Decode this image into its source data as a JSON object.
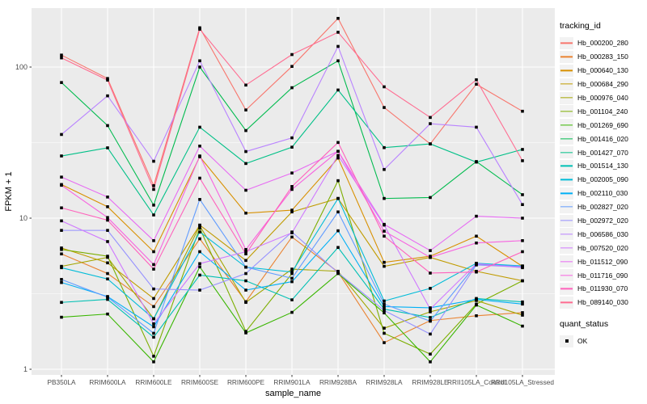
{
  "chart_data": {
    "type": "line",
    "title": "",
    "xlabel": "sample_name",
    "ylabel": "FPKM + 1",
    "yscale": "log10",
    "ylim": [
      1,
      250
    ],
    "yticks": [
      1,
      10,
      100
    ],
    "ytick_labels": [
      "1",
      "10",
      "100"
    ],
    "yminor_breaks": [
      3.162,
      31.62
    ],
    "grid": "on",
    "legend_position": "right",
    "legend_title": "tracking_id",
    "panel_bg": "#EBEBEB",
    "grid_color": "#FFFFFF",
    "axis_text_color": "#4D4D4D",
    "axis_title_color": "#000000",
    "marker": {
      "shape": "square",
      "color": "#000000"
    },
    "quant_legend": {
      "title": "quant_status",
      "items": [
        {
          "label": "OK",
          "marker": "black-square"
        }
      ]
    },
    "categories": [
      "PB350LA",
      "RRIM600LA",
      "RRIM600LE",
      "RRIM600SE",
      "RRIM600PE",
      "RRIM901LA",
      "RRIM928BA",
      "RRIM928LA",
      "RRIM928LE",
      "RRII105LA_Control",
      "RRII105LA_Stressed"
    ],
    "series": [
      {
        "name": "Hb_000200_280",
        "color": "#F8766D",
        "values": [
          120,
          84,
          16.4,
          182,
          52,
          101,
          210,
          54,
          31,
          77,
          51
        ]
      },
      {
        "name": "Hb_000283_150",
        "color": "#EA8331",
        "values": [
          5.8,
          4.3,
          2.6,
          7.3,
          2.8,
          7.5,
          4.4,
          1.5,
          2.1,
          2.26,
          2.37
        ]
      },
      {
        "name": "Hb_000640_130",
        "color": "#D89000",
        "values": [
          16.7,
          11.9,
          6.0,
          25.5,
          10.8,
          11.3,
          25,
          5.1,
          5.6,
          7.6,
          4.8
        ]
      },
      {
        "name": "Hb_000684_290",
        "color": "#C09B00",
        "values": [
          6.35,
          5.06,
          2.94,
          9.0,
          5.25,
          11.0,
          13.5,
          4.8,
          5.5,
          4.45,
          3.85
        ]
      },
      {
        "name": "Hb_000976_040",
        "color": "#A3A500",
        "values": [
          4.8,
          5.5,
          2.16,
          8.9,
          2.77,
          4.6,
          4.45,
          1.87,
          2.4,
          2.85,
          2.28
        ]
      },
      {
        "name": "Hb_001104_240",
        "color": "#7CAE00",
        "values": [
          6.2,
          5.6,
          1.22,
          8.6,
          1.78,
          4.3,
          17.7,
          1.73,
          1.26,
          2.7,
          3.85
        ]
      },
      {
        "name": "Hb_001269_690",
        "color": "#39B600",
        "values": [
          2.21,
          2.32,
          1.12,
          4.76,
          1.74,
          2.38,
          4.3,
          2.36,
          1.12,
          2.66,
          1.93
        ]
      },
      {
        "name": "Hb_001416_020",
        "color": "#00BB4E",
        "values": [
          79,
          41,
          12.2,
          100,
          38,
          73,
          110,
          13.5,
          13.7,
          23.7,
          14.3
        ]
      },
      {
        "name": "Hb_001427_070",
        "color": "#00C087",
        "values": [
          25.8,
          29.2,
          10.5,
          40,
          23,
          29.5,
          70.5,
          29.3,
          31,
          23.5,
          28.5
        ]
      },
      {
        "name": "Hb_001514_130",
        "color": "#00C0B4",
        "values": [
          2.77,
          2.9,
          1.63,
          4.2,
          3.85,
          2.88,
          6.4,
          2.5,
          2.2,
          2.94,
          2.79
        ]
      },
      {
        "name": "Hb_002005_090",
        "color": "#00BCD8",
        "values": [
          4.7,
          3.96,
          2.16,
          8.1,
          4.74,
          4.4,
          13.5,
          2.83,
          3.43,
          5.03,
          4.83
        ]
      },
      {
        "name": "Hb_002110_030",
        "color": "#00B0F6",
        "values": [
          3.75,
          3.03,
          1.91,
          6.0,
          3.34,
          3.8,
          8.25,
          2.6,
          2.55,
          2.9,
          2.7
        ]
      },
      {
        "name": "Hb_002827_020",
        "color": "#619CFF",
        "values": [
          3.93,
          3.0,
          1.73,
          13.3,
          4.74,
          4.0,
          11.0,
          2.7,
          2.08,
          4.95,
          4.8
        ]
      },
      {
        "name": "Hb_002972_020",
        "color": "#9590FF",
        "values": [
          8.3,
          8.3,
          3.4,
          3.34,
          4.3,
          8.1,
          4.35,
          2.45,
          1.71,
          4.9,
          4.75
        ]
      },
      {
        "name": "Hb_006586_030",
        "color": "#B983FF",
        "values": [
          35.8,
          64.5,
          23.8,
          110,
          27.6,
          34,
          137,
          21,
          42.2,
          40,
          12.3
        ]
      },
      {
        "name": "Hb_007520_020",
        "color": "#CF78FF",
        "values": [
          9.6,
          7.0,
          2.0,
          5.0,
          6.0,
          8.0,
          26,
          9.0,
          2.5,
          5.0,
          4.7
        ]
      },
      {
        "name": "Hb_011512_090",
        "color": "#E76BF3",
        "values": [
          18.7,
          13.8,
          7.1,
          30,
          15.3,
          19.9,
          27.7,
          9.1,
          6.1,
          10.3,
          10
        ]
      },
      {
        "name": "Hb_011716_090",
        "color": "#F763E0",
        "values": [
          16.5,
          10.1,
          4.93,
          25.8,
          6.2,
          15.5,
          27.7,
          8.2,
          5.5,
          6.85,
          7.1
        ]
      },
      {
        "name": "Hb_011930_070",
        "color": "#FF62BC",
        "values": [
          11.7,
          9.7,
          4.6,
          18.4,
          5.8,
          16.2,
          31.7,
          7.6,
          4.33,
          4.4,
          6.0
        ]
      },
      {
        "name": "Hb_089140_030",
        "color": "#FF6C91",
        "values": [
          115,
          82,
          15.5,
          178,
          76,
          121,
          170,
          74,
          46.4,
          82.4,
          24
        ]
      }
    ]
  }
}
